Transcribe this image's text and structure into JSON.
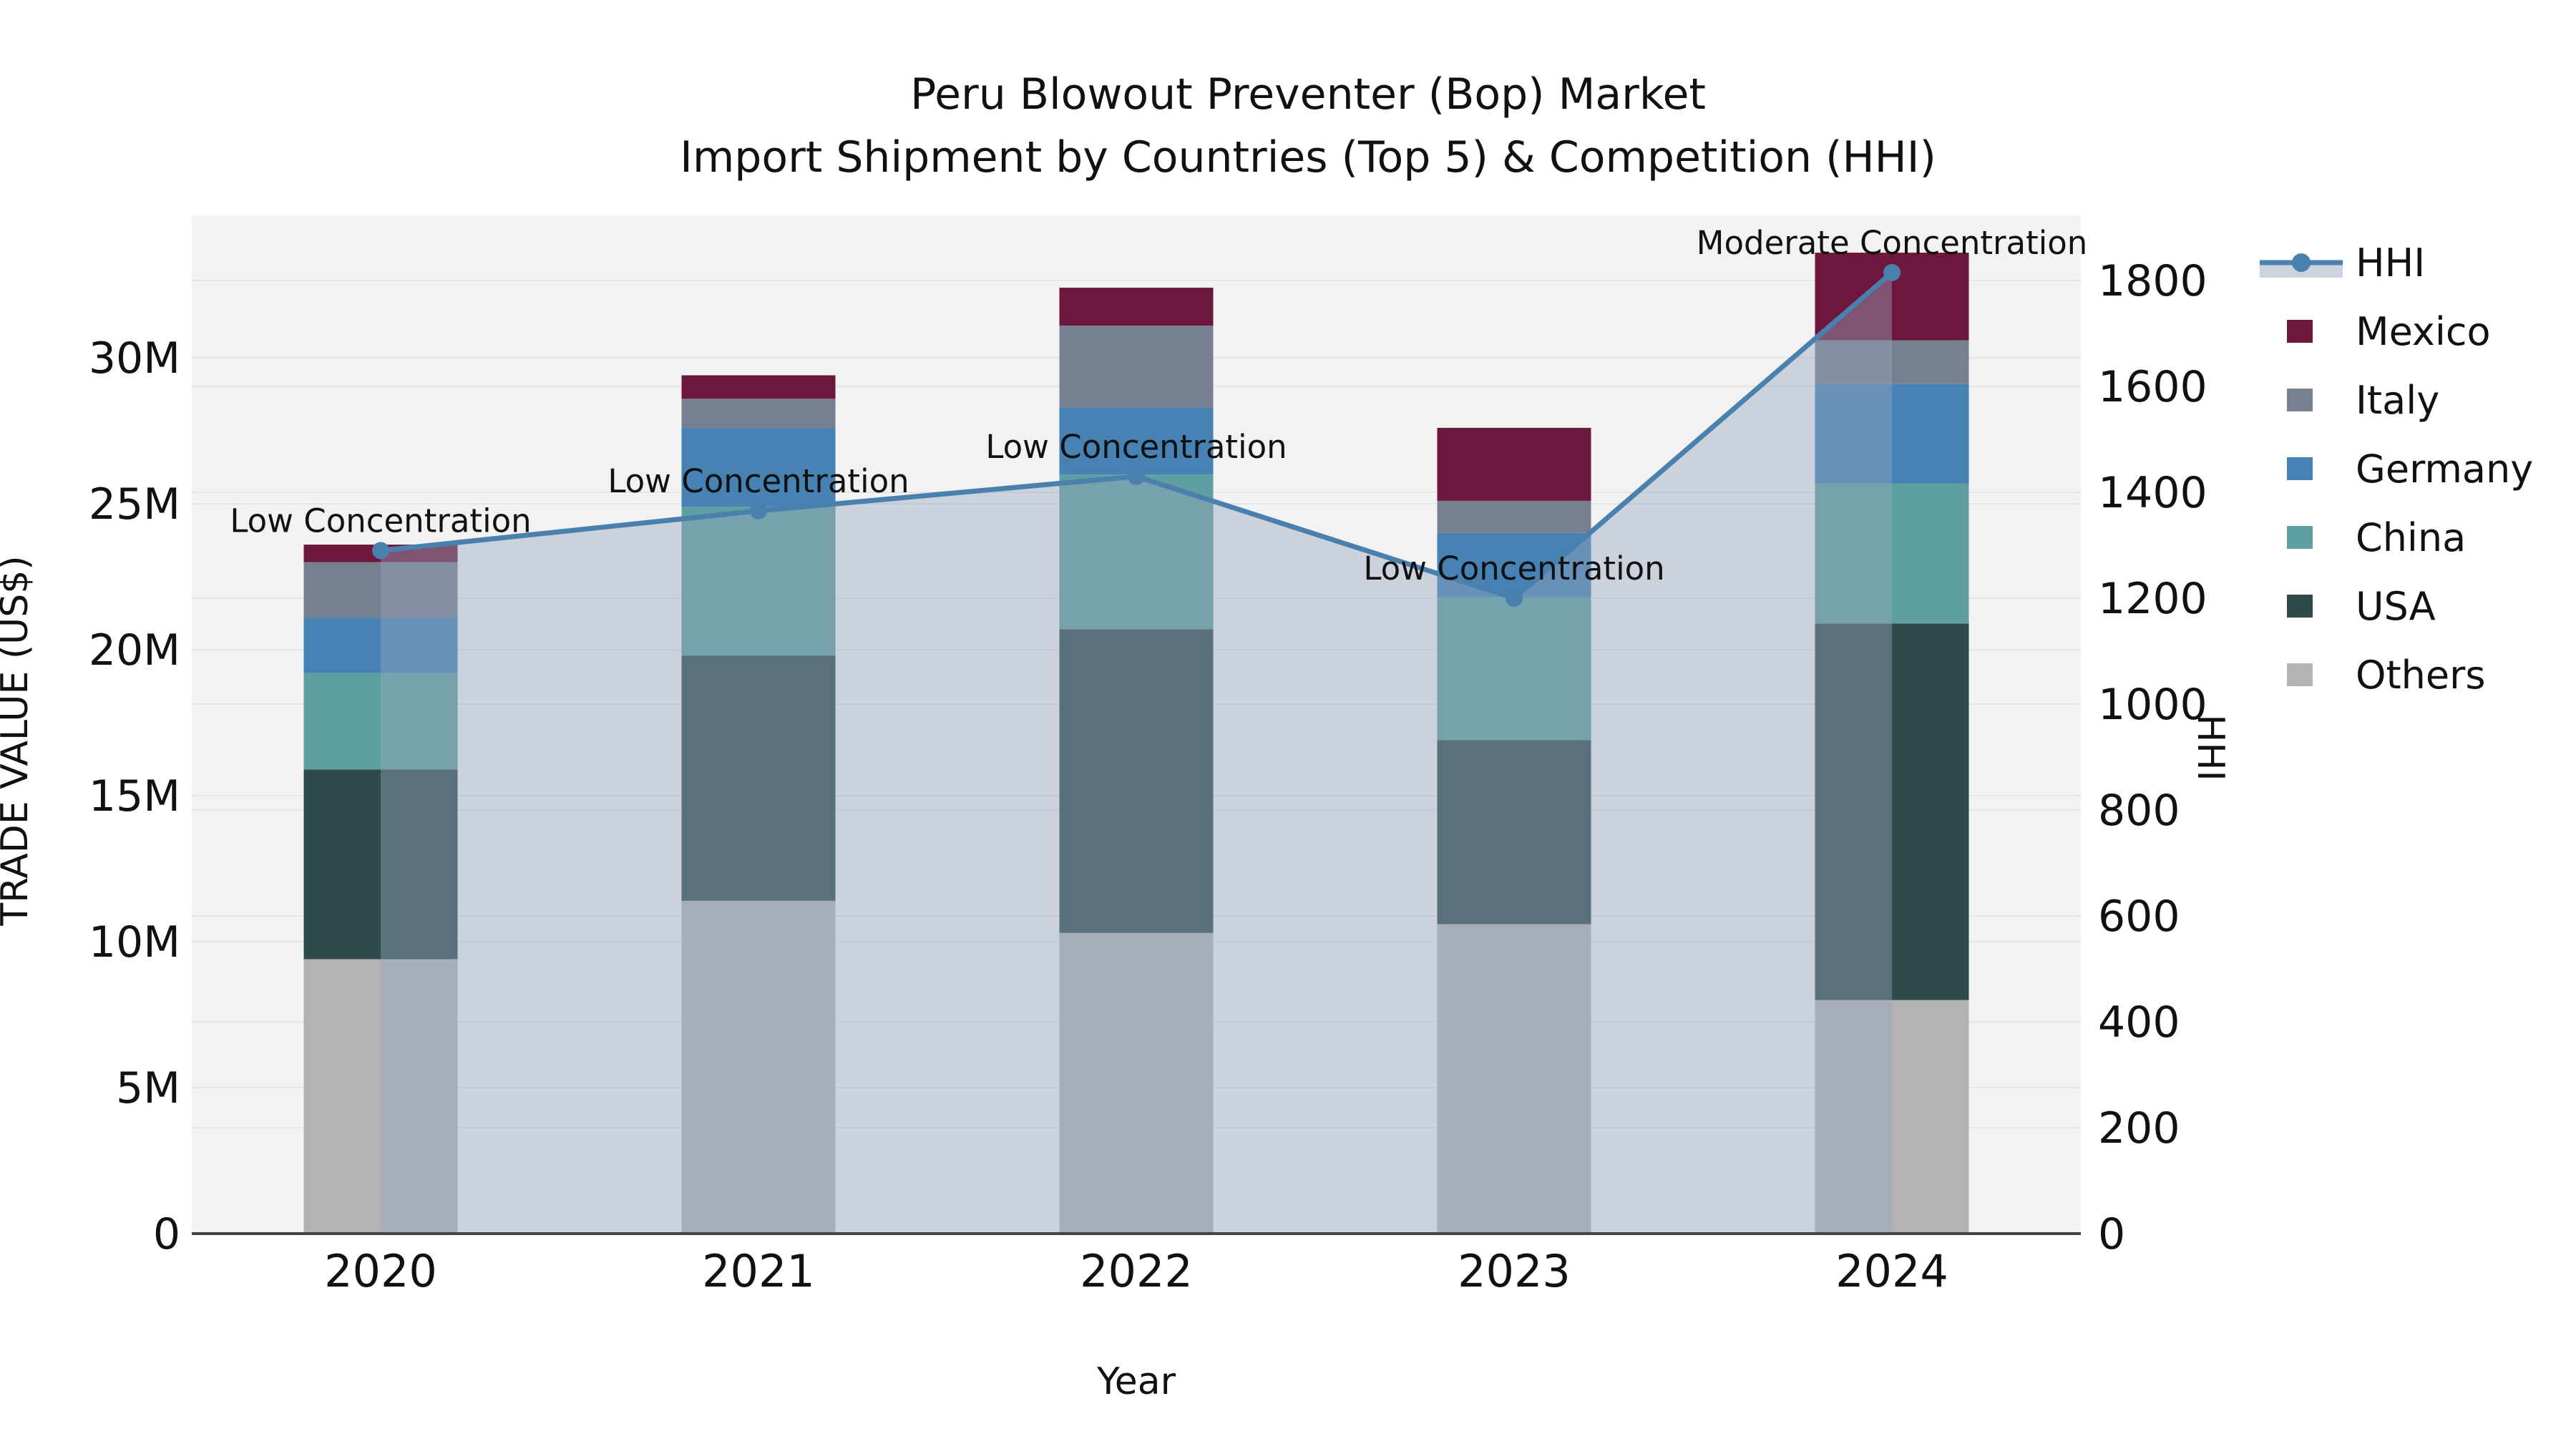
{
  "title": {
    "line1": "Peru Blowout Preventer (Bop) Market",
    "line2": "Import Shipment by Countries (Top 5) & Competition (HHI)"
  },
  "axes": {
    "x_title": "Year",
    "y_left_title": "TRADE VALUE (US$)",
    "y_right_title": "HHI",
    "x_ticks": [
      "2020",
      "2021",
      "2022",
      "2023",
      "2024"
    ],
    "y_left_ticks": [
      {
        "value": 0,
        "label": "0"
      },
      {
        "value": 5,
        "label": "5M"
      },
      {
        "value": 10,
        "label": "10M"
      },
      {
        "value": 15,
        "label": "15M"
      },
      {
        "value": 20,
        "label": "20M"
      },
      {
        "value": 25,
        "label": "25M"
      },
      {
        "value": 30,
        "label": "30M"
      }
    ],
    "y_right_ticks": [
      {
        "value": 0,
        "label": "0"
      },
      {
        "value": 200,
        "label": "200"
      },
      {
        "value": 400,
        "label": "400"
      },
      {
        "value": 600,
        "label": "600"
      },
      {
        "value": 800,
        "label": "800"
      },
      {
        "value": 1000,
        "label": "1000"
      },
      {
        "value": 1200,
        "label": "1200"
      },
      {
        "value": 1400,
        "label": "1400"
      },
      {
        "value": 1600,
        "label": "1600"
      },
      {
        "value": 1800,
        "label": "1800"
      }
    ]
  },
  "legend": {
    "items": [
      {
        "label": "HHI",
        "type": "line",
        "color": "#4a80ae"
      },
      {
        "label": "Mexico",
        "type": "swatch",
        "color": "#6e173c"
      },
      {
        "label": "Italy",
        "type": "swatch",
        "color": "#76808f"
      },
      {
        "label": "Germany",
        "type": "swatch",
        "color": "#4682b4"
      },
      {
        "label": "China",
        "type": "swatch",
        "color": "#5f9fa2"
      },
      {
        "label": "USA",
        "type": "swatch",
        "color": "#2e4b49"
      },
      {
        "label": "Others",
        "type": "swatch",
        "color": "#b3b3b3"
      }
    ]
  },
  "chart_data": {
    "type": "bar",
    "subtype": "stacked-bars-with-line",
    "title": "Peru Blowout Preventer (Bop) Market — Import Shipment by Countries (Top 5) & Competition (HHI)",
    "categories": [
      "2020",
      "2021",
      "2022",
      "2023",
      "2024"
    ],
    "value_unit": "M US$",
    "series": [
      {
        "name": "Mexico",
        "color": "#6e173c",
        "values": [
          0.6,
          0.8,
          1.3,
          2.5,
          3.0
        ]
      },
      {
        "name": "Italy",
        "color": "#76808f",
        "values": [
          1.9,
          1.0,
          2.8,
          1.1,
          1.5
        ]
      },
      {
        "name": "Germany",
        "color": "#4682b4",
        "values": [
          1.9,
          2.7,
          2.3,
          2.2,
          3.4
        ]
      },
      {
        "name": "China",
        "color": "#5f9fa2",
        "values": [
          3.3,
          5.1,
          5.3,
          4.9,
          4.8
        ]
      },
      {
        "name": "USA",
        "color": "#2e4b49",
        "values": [
          6.5,
          8.4,
          10.4,
          6.3,
          12.9
        ]
      },
      {
        "name": "Others",
        "color": "#b3b3b3",
        "values": [
          9.4,
          11.4,
          10.3,
          10.6,
          8.0
        ]
      }
    ],
    "stack_totals": [
      23.6,
      29.4,
      32.4,
      27.6,
      33.6
    ],
    "hhi_line": {
      "name": "HHI",
      "color": "#4a80ae",
      "values": [
        1290,
        1365,
        1430,
        1200,
        1815
      ],
      "area_fill": "rgba(151,166,190,0.42)"
    },
    "annotations": [
      {
        "category": "2020",
        "text": "Low Concentration"
      },
      {
        "category": "2021",
        "text": "Low Concentration"
      },
      {
        "category": "2022",
        "text": "Low Concentration"
      },
      {
        "category": "2023",
        "text": "Low Concentration"
      },
      {
        "category": "2024",
        "text": "Moderate Concentration"
      }
    ],
    "xlabel": "Year",
    "ylabel_left": "TRADE VALUE (US$)",
    "ylabel_right": "HHI",
    "ylim_left": [
      0,
      35
    ],
    "ylim_right": [
      0,
      1925
    ],
    "grid": true,
    "legend_position": "right"
  },
  "colors": {
    "page_bg": "#ffffff",
    "plot_bg": "#f2f2f2",
    "gridline": "#e4e4e7",
    "axis_line": "#444444",
    "text": "#111111",
    "legend_band": "#ccd3dc"
  }
}
